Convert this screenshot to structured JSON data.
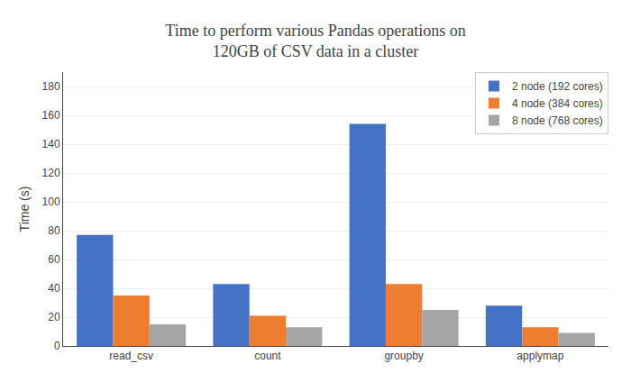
{
  "chart_data": {
    "type": "bar",
    "title": "Time to perform various Pandas operations on\n120GB of CSV data in a cluster",
    "ylabel": "Time (s)",
    "categories": [
      "read_csv",
      "count",
      "groupby",
      "applymap"
    ],
    "series": [
      {
        "name": "2 node (192 cores)",
        "color": "#4472C4",
        "values": [
          77,
          43,
          154,
          28
        ]
      },
      {
        "name": "4 node (384 cores)",
        "color": "#ED7D31",
        "values": [
          35,
          21,
          43,
          13
        ]
      },
      {
        "name": "8 node (768 cores)",
        "color": "#A5A5A5",
        "values": [
          15,
          13,
          25,
          9
        ]
      }
    ],
    "ylim": [
      0,
      190
    ],
    "yticks": [
      0,
      20,
      40,
      60,
      80,
      100,
      120,
      140,
      160,
      180
    ],
    "grid": true,
    "legend": "upper right"
  }
}
